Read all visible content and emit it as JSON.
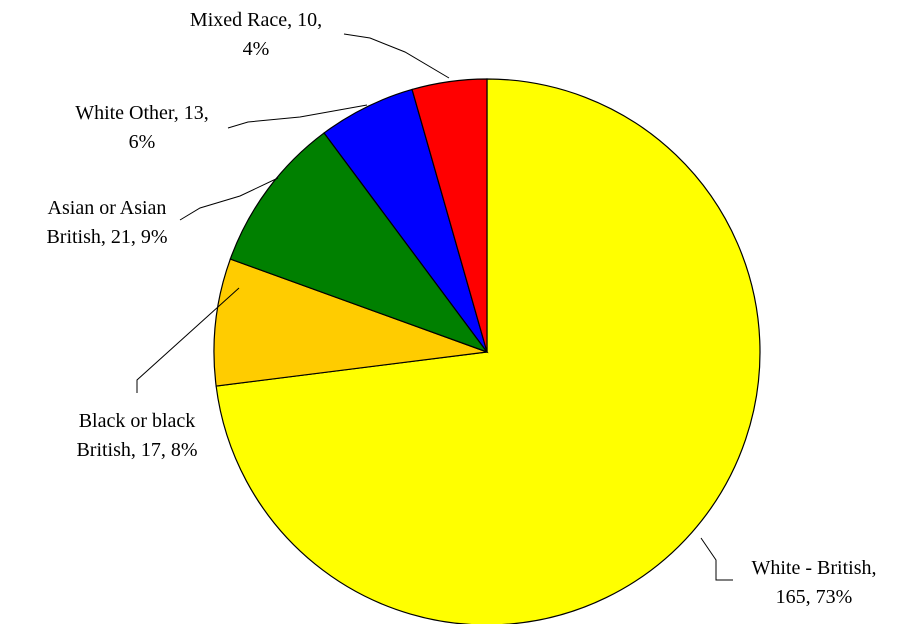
{
  "chart_data": {
    "type": "pie",
    "title": "",
    "start": "top",
    "direction": "clockwise",
    "slices": [
      {
        "label": "White - British",
        "value": 165,
        "percent": "73%",
        "color": "#FFFF00",
        "label_lines": [
          "White - British,",
          "165, 73%"
        ]
      },
      {
        "label": "Black or black British",
        "value": 17,
        "percent": "8%",
        "color": "#FFCC00",
        "label_lines": [
          "Black or black",
          "British, 17, 8%"
        ]
      },
      {
        "label": "Asian or Asian British",
        "value": 21,
        "percent": "9%",
        "color": "#008000",
        "label_lines": [
          "Asian or Asian",
          "British, 21, 9%"
        ]
      },
      {
        "label": "White Other",
        "value": 13,
        "percent": "6%",
        "color": "#0000FF",
        "label_lines": [
          "White Other, 13,",
          "6%"
        ]
      },
      {
        "label": "Mixed Race",
        "value": 10,
        "percent": "4%",
        "color": "#FF0000",
        "label_lines": [
          "Mixed Race, 10,",
          "4%"
        ]
      }
    ]
  }
}
